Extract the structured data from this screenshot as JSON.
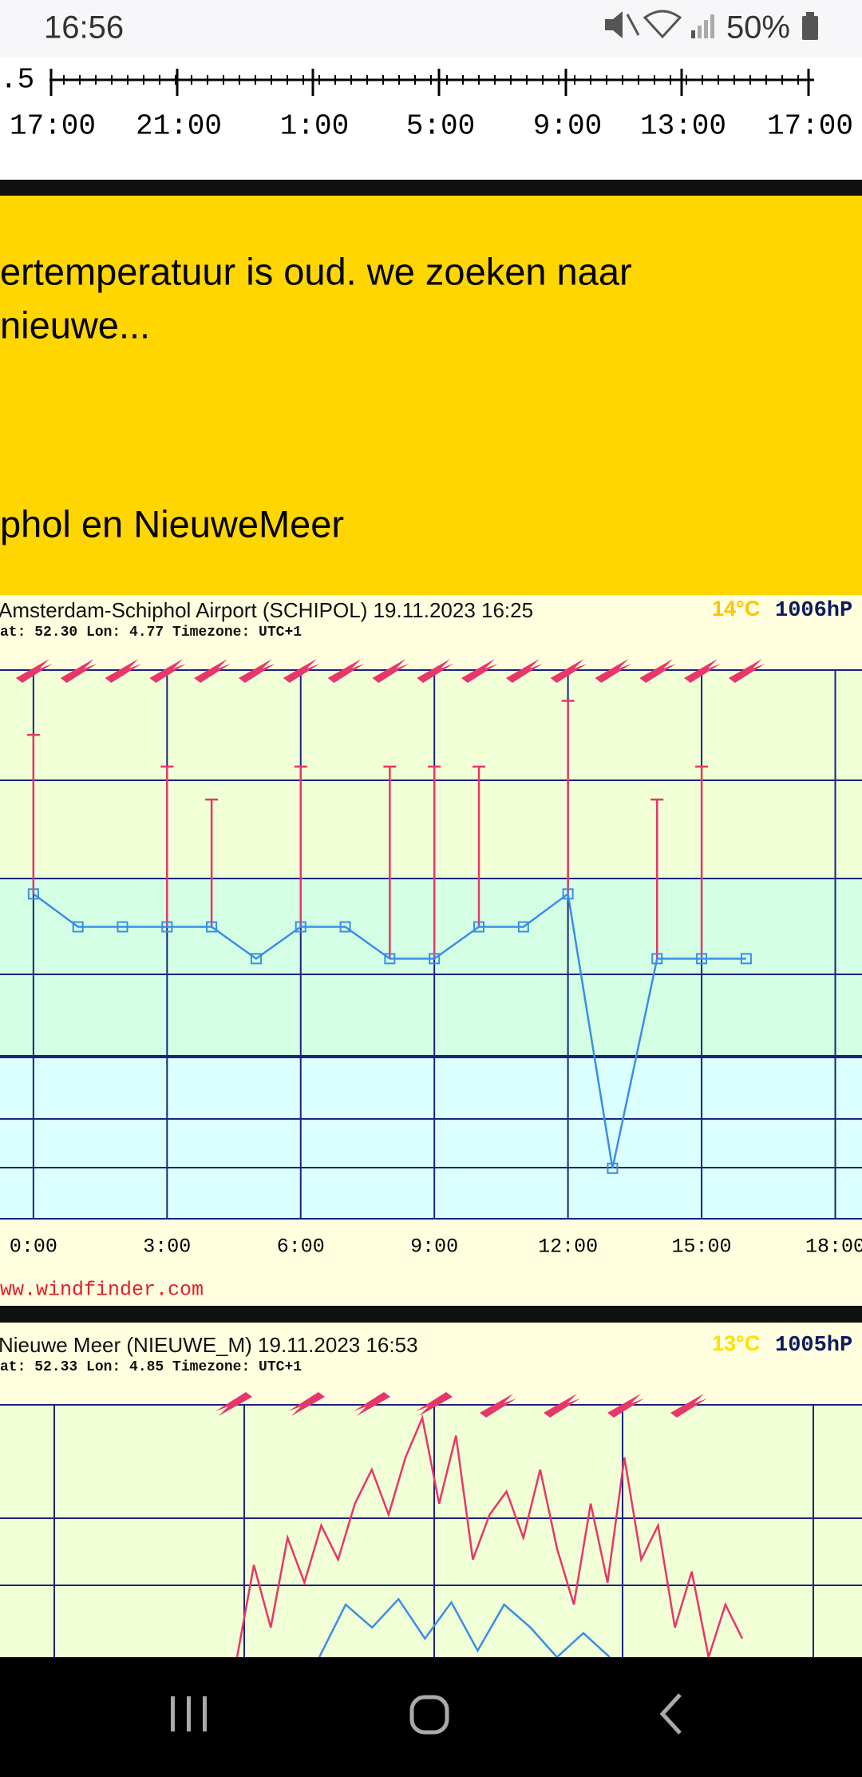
{
  "status_bar": {
    "time": "16:56",
    "battery": "50%"
  },
  "top_chart": {
    "ytick_label": ".5",
    "xtick_labels": [
      "17:00",
      "21:00",
      "1:00",
      "5:00",
      "9:00",
      "13:00",
      "17:00"
    ]
  },
  "banner": {
    "lines": [
      "ertemperatuur is oud. we zoeken naar",
      "nieuwe..."
    ],
    "footer": "phol en NieuweMeer"
  },
  "charts": [
    {
      "type": "line",
      "title": "Amsterdam-Schiphol Airport (SCHIPOL) 19.11.2023 16:25",
      "subtitle": "at: 52.30 Lon: 4.77 Timezone: UTC+1",
      "temperature": "14°C",
      "pressure": "1006hP",
      "source": "ww.windfinder.com",
      "xlim": [
        -0.75,
        18.6
      ],
      "ylim": [
        0,
        50
      ],
      "xticks": [
        {
          "value": 0,
          "label": "0:00"
        },
        {
          "value": 3,
          "label": "3:00"
        },
        {
          "value": 6,
          "label": "6:00"
        },
        {
          "value": 9,
          "label": "9:00"
        },
        {
          "value": 12,
          "label": "12:00"
        },
        {
          "value": 15,
          "label": "15:00"
        },
        {
          "value": 18,
          "label": "18:00"
        }
      ],
      "line": {
        "color": "#3a8ee6",
        "x": [
          0,
          1,
          2,
          3,
          4,
          5,
          6,
          7,
          8,
          9,
          10,
          11,
          12,
          13,
          14,
          15,
          16
        ],
        "values": [
          29.6,
          26.6,
          26.6,
          26.6,
          26.6,
          23.7,
          26.6,
          26.6,
          23.7,
          23.7,
          26.6,
          26.6,
          29.6,
          4.6,
          23.7,
          23.7,
          23.7
        ]
      },
      "gusts": {
        "color": "#e8366b",
        "x": [
          0,
          3,
          4,
          6,
          8,
          9,
          10,
          12,
          14,
          15
        ],
        "values": [
          44.1,
          41.2,
          38.2,
          41.2,
          41.2,
          41.2,
          41.2,
          47.2,
          38.2,
          41.2
        ]
      }
    },
    {
      "type": "line",
      "title": "Nieuwe Meer (NIEUWE_M) 19.11.2023 16:53",
      "subtitle": "at: 52.33 Lon: 4.85 Timezone: UTC+1",
      "temperature": "13°C",
      "pressure": "1005hP",
      "ylim": [
        0,
        50
      ],
      "series": [
        {
          "color": "#e8366b",
          "values": [
            27.0,
            35.4,
            29.7,
            37.9,
            33.8,
            39.0,
            35.9,
            41.0,
            44.1,
            40.0,
            45.2,
            48.8,
            41.0,
            47.2,
            35.9,
            40.0,
            42.1,
            37.9,
            44.1,
            36.9,
            31.8,
            41.0,
            33.8,
            45.2,
            35.9,
            39.0,
            29.7,
            34.8,
            27.0,
            31.8,
            28.7
          ]
        },
        {
          "color": "#3a8ee6",
          "values": [
            27.0,
            31.8,
            29.7,
            32.3,
            28.7,
            32.0,
            27.6,
            31.8,
            29.7,
            27.0,
            29.2,
            27.0
          ]
        }
      ]
    }
  ]
}
